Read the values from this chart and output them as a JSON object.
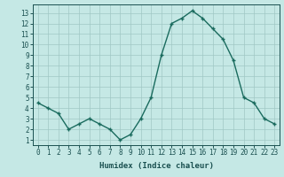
{
  "x": [
    0,
    1,
    2,
    3,
    4,
    5,
    6,
    7,
    8,
    9,
    10,
    11,
    12,
    13,
    14,
    15,
    16,
    17,
    18,
    19,
    20,
    21,
    22,
    23
  ],
  "y": [
    4.5,
    4.0,
    3.5,
    2.0,
    2.5,
    3.0,
    2.5,
    2.0,
    1.0,
    1.5,
    3.0,
    5.0,
    9.0,
    12.0,
    12.5,
    13.2,
    12.5,
    11.5,
    10.5,
    8.5,
    5.0,
    4.5,
    3.0,
    2.5
  ],
  "line_color": "#1a6b5e",
  "marker": "+",
  "marker_size": 3,
  "xlabel": "Humidex (Indice chaleur)",
  "xlim": [
    -0.5,
    23.5
  ],
  "ylim": [
    0.5,
    13.8
  ],
  "yticks": [
    1,
    2,
    3,
    4,
    5,
    6,
    7,
    8,
    9,
    10,
    11,
    12,
    13
  ],
  "xticks": [
    0,
    1,
    2,
    3,
    4,
    5,
    6,
    7,
    8,
    9,
    10,
    11,
    12,
    13,
    14,
    15,
    16,
    17,
    18,
    19,
    20,
    21,
    22,
    23
  ],
  "background_color": "#c5e8e5",
  "grid_color": "#a0c8c5",
  "font_color": "#1a5050",
  "axis_color": "#1a5050",
  "linewidth": 1.0,
  "tick_fontsize": 5.5,
  "label_fontsize": 6.5
}
